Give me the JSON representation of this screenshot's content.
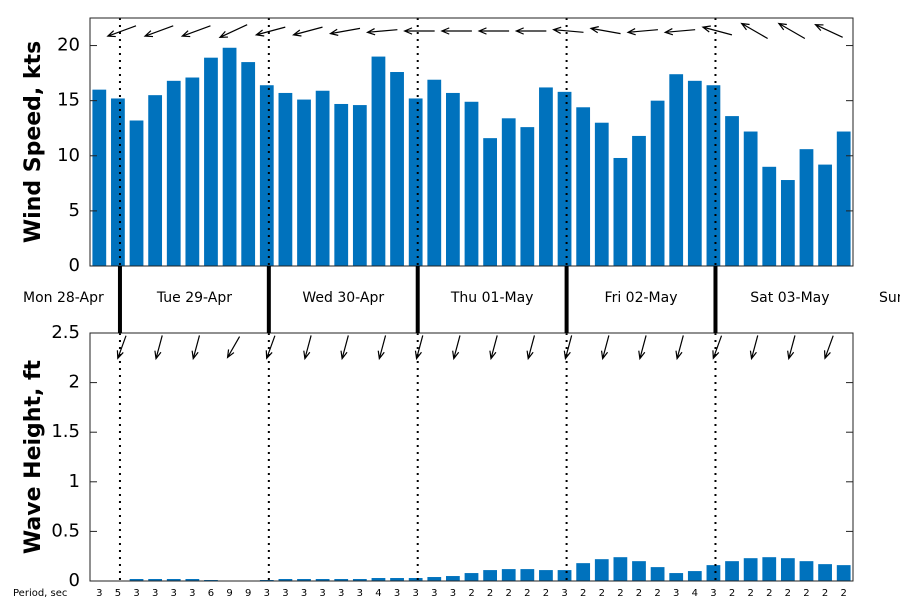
{
  "days": [
    "Mon 28-Apr",
    "Tue 29-Apr",
    "Wed 30-Apr",
    "Thu 01-May",
    "Fri 02-May",
    "Sat 03-May",
    "Sun"
  ],
  "chart_data": [
    {
      "type": "bar",
      "ylabel": "Wind Speed, kts",
      "color": "#0072bd",
      "values": [
        16,
        15.2,
        13.2,
        15.5,
        16.8,
        17.1,
        18.9,
        19.8,
        18.5,
        16.4,
        15.7,
        15.1,
        15.9,
        14.7,
        14.6,
        19,
        17.6,
        15.2,
        16.9,
        15.7,
        14.9,
        11.6,
        13.4,
        12.6,
        16.2,
        15.8,
        14.4,
        13,
        9.8,
        11.8,
        15,
        17.4,
        16.8,
        16.4,
        13.6,
        12.2,
        9,
        7.8,
        10.6,
        9.2,
        12.2
      ],
      "ylim": [
        0,
        22.5
      ],
      "yticks": [
        0,
        5,
        10,
        15,
        20
      ],
      "arrows": [
        250,
        250,
        250,
        245,
        255,
        255,
        260,
        265,
        270,
        270,
        270,
        270,
        275,
        280,
        265,
        265,
        285,
        300,
        300,
        295
      ]
    },
    {
      "type": "bar",
      "ylabel": "Wave Height, ft",
      "color": "#0072bd",
      "values": [
        0,
        0,
        0.02,
        0.02,
        0.02,
        0.02,
        0.01,
        0,
        0,
        0.01,
        0.02,
        0.02,
        0.02,
        0.02,
        0.02,
        0.03,
        0.03,
        0.03,
        0.04,
        0.05,
        0.08,
        0.11,
        0.12,
        0.12,
        0.11,
        0.11,
        0.18,
        0.22,
        0.24,
        0.2,
        0.14,
        0.08,
        0.1,
        0.16,
        0.2,
        0.23,
        0.24,
        0.23,
        0.2,
        0.17,
        0.16
      ],
      "ylim": [
        0,
        2.5
      ],
      "yticks": [
        0,
        0.5,
        1,
        1.5,
        2,
        2.5
      ],
      "arrows": [
        200,
        195,
        195,
        210,
        200,
        195,
        195,
        195,
        195,
        195,
        195,
        195,
        195,
        195,
        195,
        195,
        200,
        195,
        195,
        200
      ],
      "period_label": "Period, sec",
      "periods": [
        3,
        5,
        3,
        3,
        3,
        3,
        6,
        9,
        9,
        3,
        3,
        3,
        3,
        3,
        3,
        4,
        3,
        3,
        3,
        3,
        2,
        2,
        2,
        2,
        2,
        3,
        2,
        2,
        2,
        2,
        2,
        3,
        4,
        3,
        2,
        2,
        2,
        2,
        2,
        2,
        2
      ]
    }
  ]
}
